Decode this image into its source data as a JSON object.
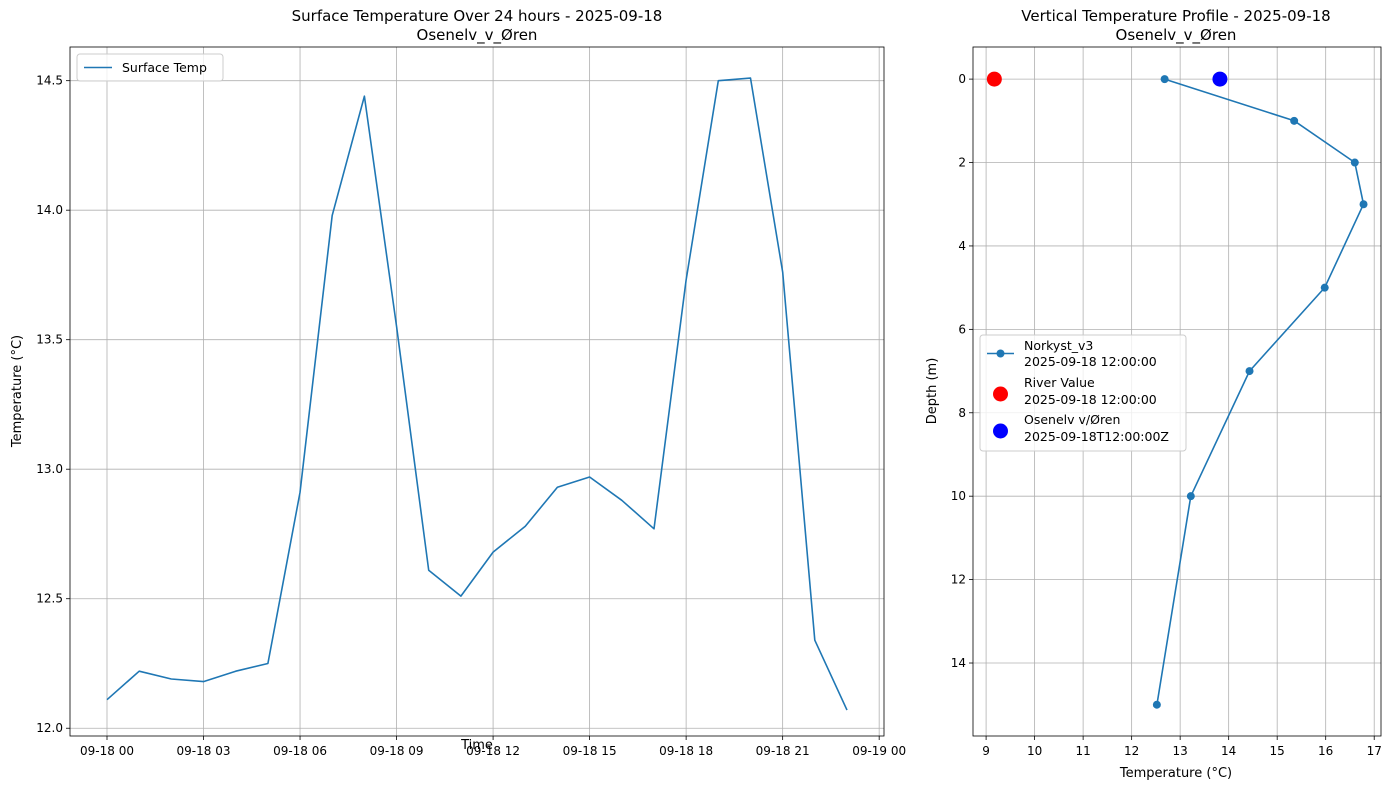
{
  "chart_data": [
    {
      "type": "line",
      "title_line1": "Surface Temperature Over 24 hours - 2025-09-18",
      "title_line2": "Osenelv_v_Øren",
      "xlabel": "Time",
      "ylabel": "Temperature (°C)",
      "xlim_hours": [
        -1.15,
        24.15
      ],
      "ylim": [
        11.97,
        14.63
      ],
      "x_ticks": [
        {
          "hour": 0,
          "label": "09-18 00"
        },
        {
          "hour": 3,
          "label": "09-18 03"
        },
        {
          "hour": 6,
          "label": "09-18 06"
        },
        {
          "hour": 9,
          "label": "09-18 09"
        },
        {
          "hour": 12,
          "label": "09-18 12"
        },
        {
          "hour": 15,
          "label": "09-18 15"
        },
        {
          "hour": 18,
          "label": "09-18 18"
        },
        {
          "hour": 21,
          "label": "09-18 21"
        },
        {
          "hour": 24,
          "label": "09-19 00"
        }
      ],
      "y_ticks": [
        {
          "value": 12.0,
          "label": "12.0"
        },
        {
          "value": 12.5,
          "label": "12.5"
        },
        {
          "value": 13.0,
          "label": "13.0"
        },
        {
          "value": 13.5,
          "label": "13.5"
        },
        {
          "value": 14.0,
          "label": "14.0"
        },
        {
          "value": 14.5,
          "label": "14.5"
        }
      ],
      "grid": true,
      "legend_placement": "upper left",
      "series": [
        {
          "name": "Surface Temp",
          "color": "#1f77b4",
          "x_hours": [
            0,
            1,
            2,
            3,
            4,
            5,
            6,
            7,
            8,
            9,
            10,
            11,
            12,
            13,
            14,
            15,
            16,
            17,
            18,
            19,
            20,
            21,
            22,
            23
          ],
          "values": [
            12.11,
            12.22,
            12.19,
            12.18,
            12.22,
            12.25,
            12.91,
            13.98,
            14.44,
            13.55,
            12.61,
            12.51,
            12.68,
            12.78,
            12.93,
            12.97,
            12.88,
            12.77,
            13.73,
            14.5,
            14.51,
            13.76,
            12.34,
            12.07
          ]
        }
      ]
    },
    {
      "type": "line",
      "title_line1": "Vertical Temperature Profile - 2025-09-18",
      "title_line2": "Osenelv_v_Øren",
      "xlabel": "Temperature (°C)",
      "ylabel": "Depth (m)",
      "xlim": [
        8.73,
        17.14
      ],
      "ylim_inverted": [
        -0.77,
        15.75
      ],
      "x_ticks": [
        {
          "value": 9,
          "label": "9"
        },
        {
          "value": 10,
          "label": "10"
        },
        {
          "value": 11,
          "label": "11"
        },
        {
          "value": 12,
          "label": "12"
        },
        {
          "value": 13,
          "label": "13"
        },
        {
          "value": 14,
          "label": "14"
        },
        {
          "value": 15,
          "label": "15"
        },
        {
          "value": 16,
          "label": "16"
        },
        {
          "value": 17,
          "label": "17"
        }
      ],
      "y_ticks": [
        {
          "value": 0,
          "label": "0"
        },
        {
          "value": 2,
          "label": "2"
        },
        {
          "value": 4,
          "label": "4"
        },
        {
          "value": 6,
          "label": "6"
        },
        {
          "value": 8,
          "label": "8"
        },
        {
          "value": 10,
          "label": "10"
        },
        {
          "value": 12,
          "label": "12"
        },
        {
          "value": 14,
          "label": "14"
        }
      ],
      "grid": true,
      "legend_placement": "center left",
      "series": [
        {
          "name_line1": "Norkyst_v3",
          "name_line2": "2025-09-18 12:00:00",
          "color": "#1f77b4",
          "marker": "line-with-dots",
          "temps": [
            12.68,
            15.35,
            16.6,
            16.78,
            15.98,
            14.43,
            13.22,
            12.52
          ],
          "depths": [
            0,
            1,
            2,
            3,
            5,
            7,
            10,
            15
          ]
        },
        {
          "name_line1": "River Value",
          "name_line2": "2025-09-18 12:00:00",
          "color": "#ff0000",
          "marker": "large-dot",
          "temps": [
            9.17
          ],
          "depths": [
            0
          ]
        },
        {
          "name_line1": "Osenelv v/Øren",
          "name_line2": "2025-09-18T12:00:00Z",
          "color": "#0000ff",
          "marker": "large-dot",
          "temps": [
            13.82
          ],
          "depths": [
            0
          ]
        }
      ]
    }
  ]
}
